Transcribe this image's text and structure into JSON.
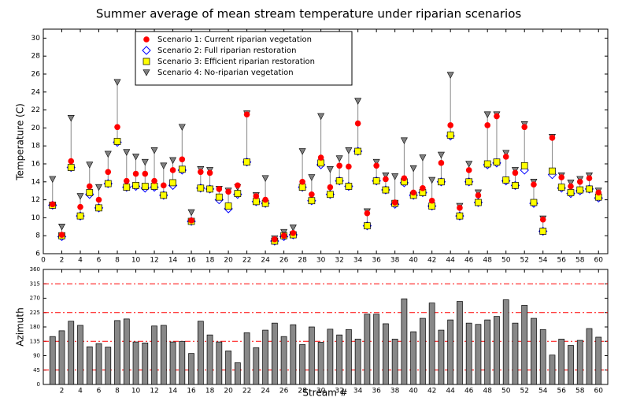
{
  "chart_data": [
    {
      "type": "scatter",
      "title": "Summer average of mean stream temperature under riparian scenarios",
      "y_label": "Temperature (C)",
      "x": [
        1,
        2,
        3,
        4,
        5,
        6,
        7,
        8,
        9,
        10,
        11,
        12,
        13,
        14,
        15,
        16,
        17,
        18,
        19,
        20,
        21,
        22,
        23,
        24,
        25,
        26,
        27,
        28,
        29,
        30,
        31,
        32,
        33,
        34,
        35,
        36,
        37,
        38,
        39,
        40,
        41,
        42,
        43,
        44,
        45,
        46,
        47,
        48,
        49,
        50,
        51,
        52,
        53,
        54,
        55,
        56,
        57,
        58,
        59,
        60
      ],
      "series": [
        {
          "name": "Scenario 1: Current riparian vegetation",
          "color": "#ff0000",
          "marker": "circle",
          "values": [
            11.5,
            8.1,
            16.3,
            11.2,
            13.5,
            12.0,
            15.1,
            20.1,
            14.1,
            14.9,
            14.9,
            14.1,
            13.6,
            15.3,
            16.5,
            9.7,
            15.1,
            15.0,
            13.2,
            12.9,
            13.6,
            21.5,
            12.4,
            12.0,
            7.6,
            8.0,
            8.3,
            14.0,
            12.6,
            16.7,
            13.4,
            15.8,
            15.7,
            20.5,
            10.5,
            15.8,
            14.3,
            11.7,
            14.4,
            12.8,
            13.3,
            11.9,
            16.1,
            20.3,
            11.1,
            15.3,
            12.5,
            20.3,
            21.3,
            16.8,
            15.0,
            20.1,
            13.7,
            9.8,
            18.9,
            14.5,
            13.5,
            14.0,
            14.4,
            12.8
          ]
        },
        {
          "name": "Scenario 2: Full riparian restoration",
          "color": "#0000ff",
          "marker": "diamond",
          "values": [
            11.4,
            7.9,
            15.6,
            10.2,
            12.6,
            11.1,
            13.8,
            18.4,
            13.4,
            13.5,
            13.3,
            13.4,
            12.5,
            13.6,
            15.3,
            9.6,
            13.3,
            13.2,
            12.0,
            11.0,
            12.6,
            16.2,
            11.8,
            11.6,
            7.4,
            7.9,
            8.1,
            13.4,
            11.9,
            15.9,
            12.6,
            14.1,
            13.5,
            17.4,
            9.1,
            14.1,
            13.1,
            11.5,
            13.9,
            12.5,
            12.8,
            11.3,
            14.0,
            19.1,
            10.2,
            14.0,
            11.7,
            15.9,
            16.1,
            14.1,
            13.6,
            15.3,
            11.6,
            8.5,
            14.8,
            13.3,
            12.7,
            13.0,
            13.2,
            12.2
          ]
        },
        {
          "name": "Scenario 3: Efficient riparian restoration",
          "color": "#ffff00",
          "marker": "square",
          "values": [
            11.4,
            8.0,
            15.6,
            10.2,
            12.8,
            11.1,
            13.8,
            18.5,
            13.4,
            13.6,
            13.5,
            13.5,
            12.5,
            13.9,
            15.4,
            9.6,
            13.3,
            13.2,
            12.3,
            11.3,
            12.7,
            16.2,
            11.8,
            11.6,
            7.4,
            8.0,
            8.1,
            13.4,
            11.9,
            16.1,
            12.6,
            14.1,
            13.5,
            17.4,
            9.1,
            14.1,
            13.1,
            11.6,
            14.0,
            12.5,
            12.8,
            11.3,
            14.0,
            19.2,
            10.2,
            14.0,
            11.7,
            16.0,
            16.2,
            14.2,
            13.6,
            15.8,
            11.7,
            8.5,
            15.2,
            13.4,
            12.8,
            13.1,
            13.2,
            12.3
          ]
        },
        {
          "name": "Scenario 4: No-riparian vegetation",
          "color": "#808080",
          "marker": "triangle-down",
          "values": [
            14.3,
            9.0,
            21.1,
            12.4,
            15.9,
            13.4,
            17.1,
            25.1,
            17.3,
            16.8,
            16.2,
            17.5,
            15.8,
            16.4,
            20.1,
            10.6,
            15.4,
            15.3,
            13.2,
            13.0,
            13.4,
            21.6,
            12.5,
            14.4,
            7.7,
            8.4,
            8.9,
            17.4,
            14.5,
            21.3,
            15.4,
            16.6,
            17.5,
            23.0,
            10.7,
            16.2,
            14.7,
            14.6,
            18.6,
            15.5,
            16.7,
            14.2,
            17.0,
            25.9,
            11.3,
            16.0,
            12.8,
            21.5,
            21.5,
            17.2,
            15.3,
            20.4,
            14.0,
            9.9,
            19.0,
            14.7,
            13.9,
            14.3,
            14.7,
            13.0
          ]
        }
      ],
      "xlim": [
        0,
        61
      ],
      "xticks": [
        0,
        2,
        4,
        6,
        8,
        10,
        12,
        14,
        16,
        18,
        20,
        22,
        24,
        26,
        28,
        30,
        32,
        34,
        36,
        38,
        40,
        42,
        44,
        46,
        48,
        50,
        52,
        54,
        56,
        58,
        60
      ],
      "ylim": [
        6,
        31
      ],
      "yticks": [
        6,
        8,
        10,
        12,
        14,
        16,
        18,
        20,
        22,
        24,
        26,
        28,
        30
      ],
      "legend": "upper left"
    },
    {
      "type": "bar",
      "x_label": "Stream #",
      "y_label": "Azimuth",
      "color": "#888888",
      "x": [
        1,
        2,
        3,
        4,
        5,
        6,
        7,
        8,
        9,
        10,
        11,
        12,
        13,
        14,
        15,
        16,
        17,
        18,
        19,
        20,
        21,
        22,
        23,
        24,
        25,
        26,
        27,
        28,
        29,
        30,
        31,
        32,
        33,
        34,
        35,
        36,
        37,
        38,
        39,
        40,
        41,
        42,
        43,
        44,
        45,
        46,
        47,
        48,
        49,
        50,
        51,
        52,
        53,
        54,
        55,
        56,
        57,
        58,
        59,
        60
      ],
      "values": [
        150,
        168,
        198,
        185,
        118,
        128,
        117,
        200,
        205,
        133,
        130,
        183,
        185,
        133,
        135,
        97,
        198,
        155,
        133,
        105,
        68,
        162,
        115,
        170,
        192,
        150,
        187,
        125,
        180,
        132,
        173,
        155,
        172,
        142,
        220,
        220,
        190,
        142,
        268,
        165,
        207,
        255,
        170,
        202,
        260,
        192,
        188,
        202,
        213,
        265,
        192,
        248,
        207,
        172,
        92,
        142,
        122,
        138,
        175,
        148
      ],
      "xlim": [
        0,
        61
      ],
      "xticks": [
        2,
        4,
        6,
        8,
        10,
        12,
        14,
        16,
        18,
        20,
        22,
        24,
        26,
        28,
        30,
        32,
        34,
        36,
        38,
        40,
        42,
        44,
        46,
        48,
        50,
        52,
        54,
        56,
        58,
        60
      ],
      "ylim": [
        0,
        360
      ],
      "yticks": [
        0,
        45,
        90,
        135,
        180,
        225,
        270,
        315,
        360
      ],
      "reference_lines": [
        45,
        135,
        225,
        315
      ],
      "reference_color": "#ff0000"
    }
  ]
}
